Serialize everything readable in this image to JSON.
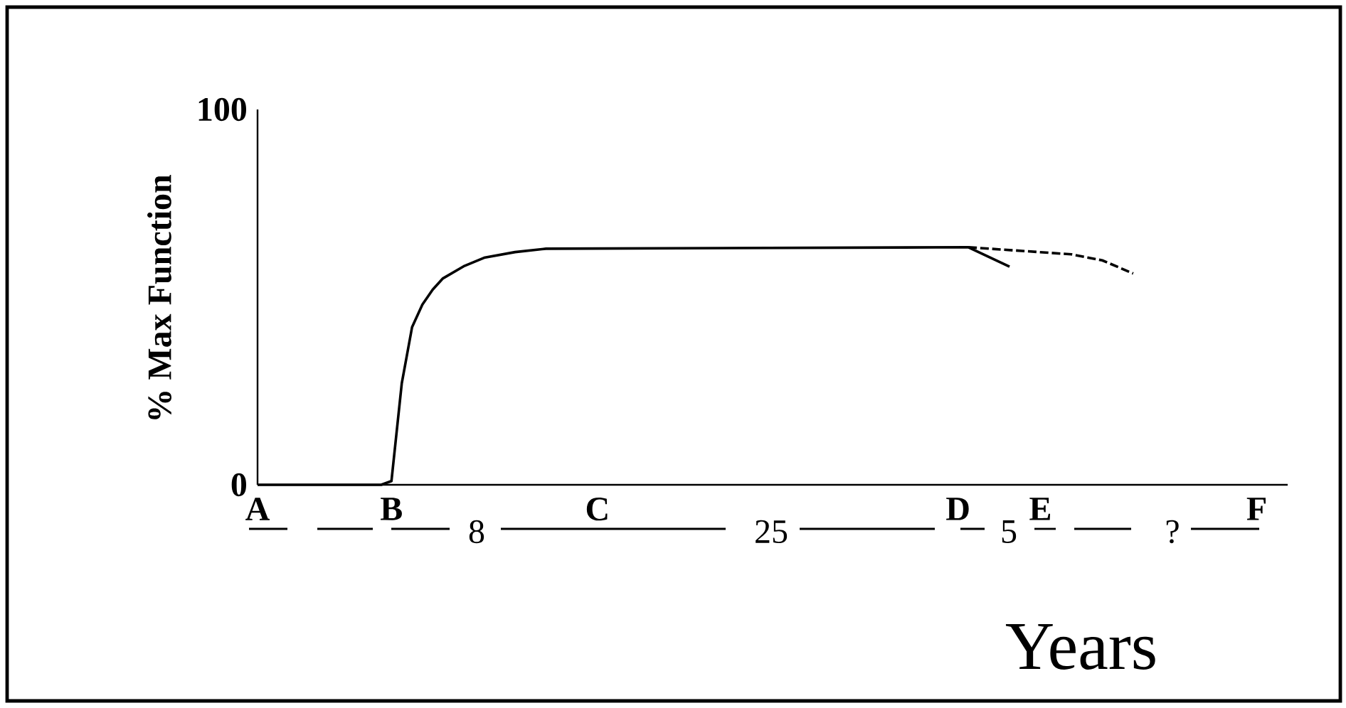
{
  "chart_data": {
    "type": "line",
    "ylabel": "% Max Function",
    "xlabel": "Years",
    "ylim": [
      0,
      100
    ],
    "yticks": [
      0,
      100
    ],
    "categories": [
      "A",
      null,
      null,
      null,
      null,
      null,
      null,
      null,
      null,
      null,
      null,
      null,
      null,
      "B",
      null,
      null,
      null,
      null,
      null,
      null,
      null,
      null,
      null,
      null,
      null,
      null,
      null,
      null,
      null,
      null,
      null,
      null,
      null,
      "C",
      null,
      null,
      null,
      null,
      null,
      null,
      null,
      null,
      null,
      null,
      null,
      null,
      null,
      null,
      null,
      null,
      null,
      null,
      null,
      null,
      null,
      null,
      null,
      null,
      null,
      null,
      null,
      null,
      null,
      null,
      null,
      null,
      null,
      null,
      "D",
      null,
      null,
      null,
      null,
      null,
      null,
      null,
      "E",
      null,
      null,
      null,
      null,
      null,
      null,
      null,
      null,
      null,
      null,
      null,
      null,
      null,
      null,
      null,
      null,
      null,
      null,
      null,
      null,
      "F",
      null,
      null,
      null
    ],
    "annotations": [
      "8",
      "25",
      "5",
      "?"
    ],
    "series": [
      {
        "color": "#000000",
        "line_style": "solid",
        "values": [
          0,
          null,
          null,
          null,
          null,
          null,
          null,
          null,
          0,
          null,
          null,
          null,
          0,
          1,
          27,
          42,
          48,
          52,
          55,
          null,
          58.2,
          null,
          60.5,
          null,
          null,
          62,
          null,
          null,
          62.9,
          null,
          null,
          null,
          null,
          null,
          null,
          null,
          null,
          null,
          null,
          null,
          null,
          null,
          null,
          null,
          null,
          null,
          null,
          null,
          null,
          null,
          null,
          null,
          null,
          null,
          null,
          null,
          null,
          null,
          null,
          null,
          null,
          null,
          null,
          null,
          null,
          null,
          null,
          null,
          null,
          63.3,
          null,
          null,
          null,
          58.1,
          null,
          null,
          null,
          null,
          null,
          null,
          null,
          null,
          null,
          null,
          null,
          null,
          null,
          null,
          null,
          null,
          null,
          null,
          null,
          null,
          null,
          null,
          null,
          null,
          null,
          null,
          null
        ]
      },
      {
        "color": "#000000",
        "line_style": "dashed",
        "values": [
          null,
          null,
          null,
          null,
          null,
          null,
          null,
          null,
          null,
          null,
          null,
          null,
          null,
          null,
          null,
          null,
          null,
          null,
          null,
          null,
          null,
          null,
          null,
          null,
          null,
          null,
          null,
          null,
          null,
          null,
          null,
          null,
          null,
          null,
          null,
          null,
          null,
          null,
          null,
          null,
          null,
          null,
          null,
          null,
          null,
          null,
          null,
          null,
          null,
          null,
          null,
          null,
          null,
          null,
          null,
          null,
          null,
          null,
          null,
          null,
          null,
          null,
          null,
          null,
          null,
          null,
          null,
          null,
          null,
          63.3,
          null,
          null,
          null,
          null,
          null,
          null,
          null,
          null,
          null,
          61.4,
          null,
          null,
          59.8,
          null,
          null,
          56.3,
          null,
          null,
          null,
          null,
          null,
          null,
          null,
          null,
          null,
          null,
          null,
          null,
          null,
          null,
          null
        ]
      }
    ]
  }
}
